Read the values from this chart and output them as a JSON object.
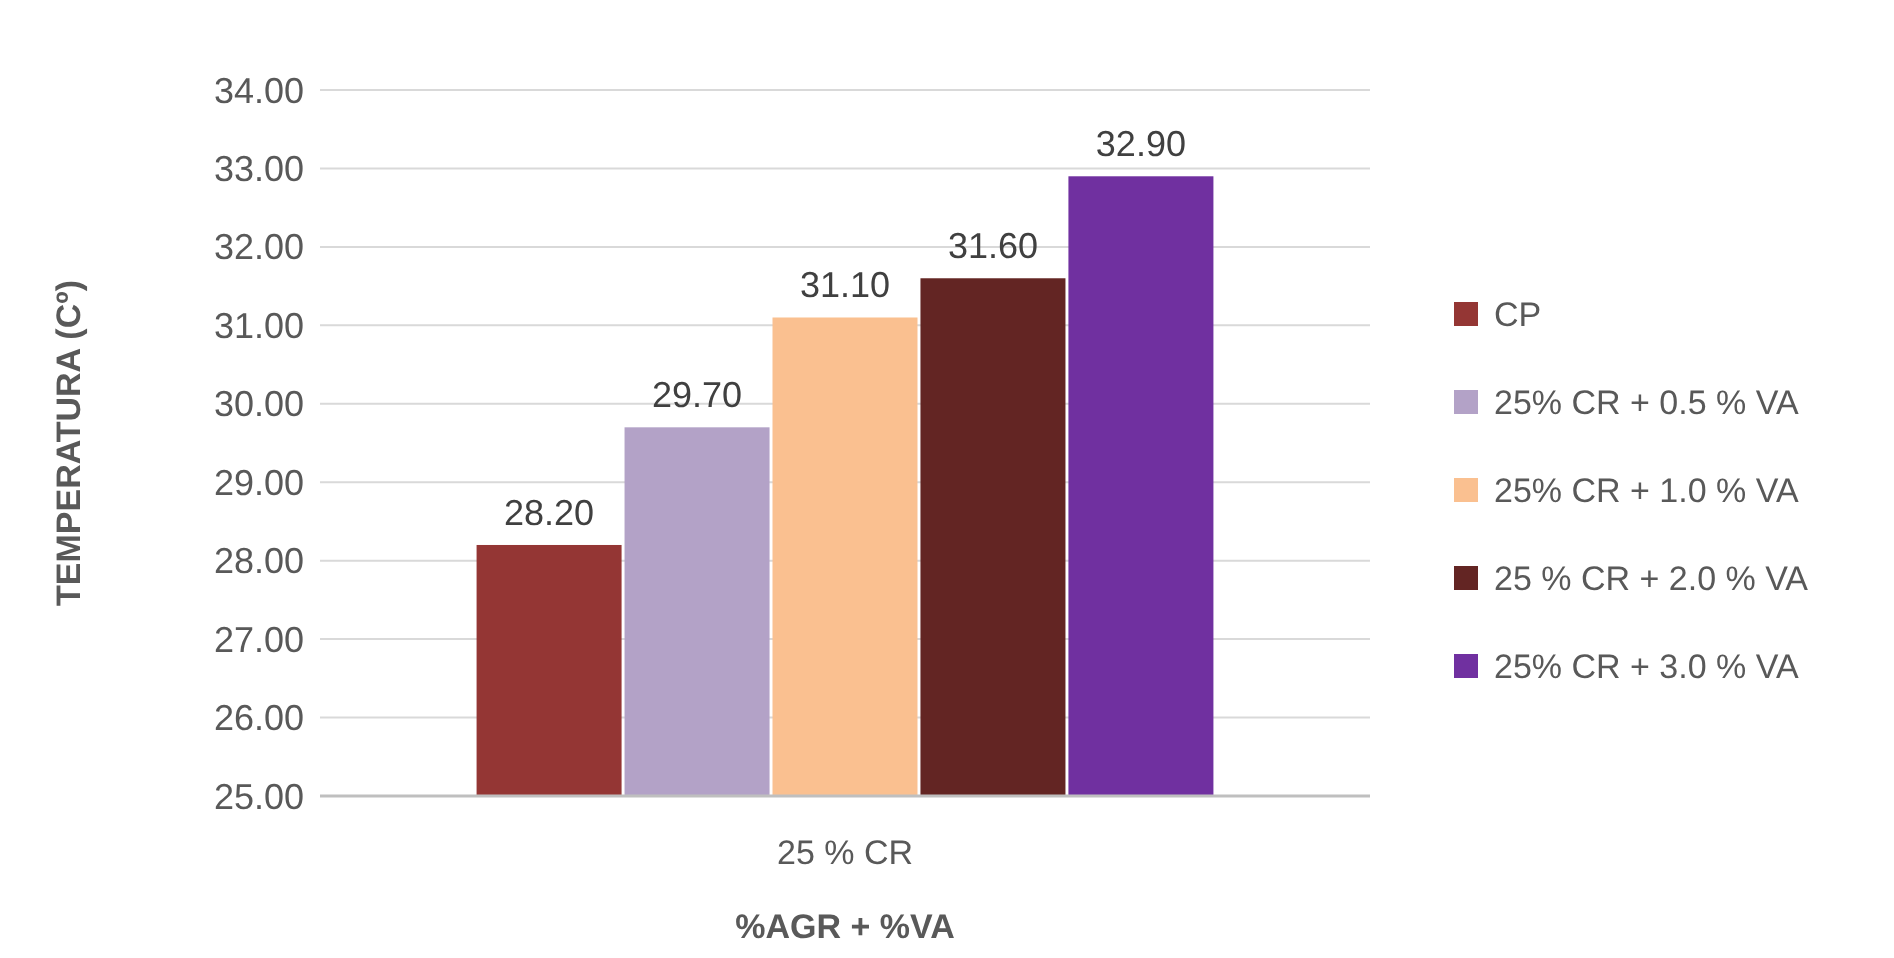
{
  "chart_data": {
    "type": "bar",
    "categories": [
      "25 % CR"
    ],
    "series": [
      {
        "name": "CP",
        "color": "#943634",
        "values": [
          28.2
        ]
      },
      {
        "name": "25% CR + 0.5 % VA",
        "color": "#b3a2c7",
        "values": [
          29.7
        ]
      },
      {
        "name": "25% CR + 1.0 % VA",
        "color": "#fac090",
        "values": [
          31.1
        ]
      },
      {
        "name": "25 % CR + 2.0 % VA",
        "color": "#632523",
        "values": [
          31.6
        ]
      },
      {
        "name": "25% CR + 3.0 % VA",
        "color": "#7030a0",
        "values": [
          32.9
        ]
      }
    ],
    "ylim": [
      25,
      34
    ],
    "yticks": [
      {
        "value": 25,
        "label": "25.00"
      },
      {
        "value": 26,
        "label": "26.00"
      },
      {
        "value": 27,
        "label": "27.00"
      },
      {
        "value": 28,
        "label": "28.00"
      },
      {
        "value": 29,
        "label": "29.00"
      },
      {
        "value": 30,
        "label": "30.00"
      },
      {
        "value": 31,
        "label": "31.00"
      },
      {
        "value": 32,
        "label": "32.00"
      },
      {
        "value": 33,
        "label": "33.00"
      },
      {
        "value": 34,
        "label": "34.00"
      }
    ],
    "value_labels": [
      "28.20",
      "29.70",
      "31.10",
      "31.60",
      "32.90"
    ],
    "xlabel": "%AGR + %VA",
    "ylabel": "TEMPERATURA (Cº)",
    "grid": "y",
    "legend": "right"
  }
}
